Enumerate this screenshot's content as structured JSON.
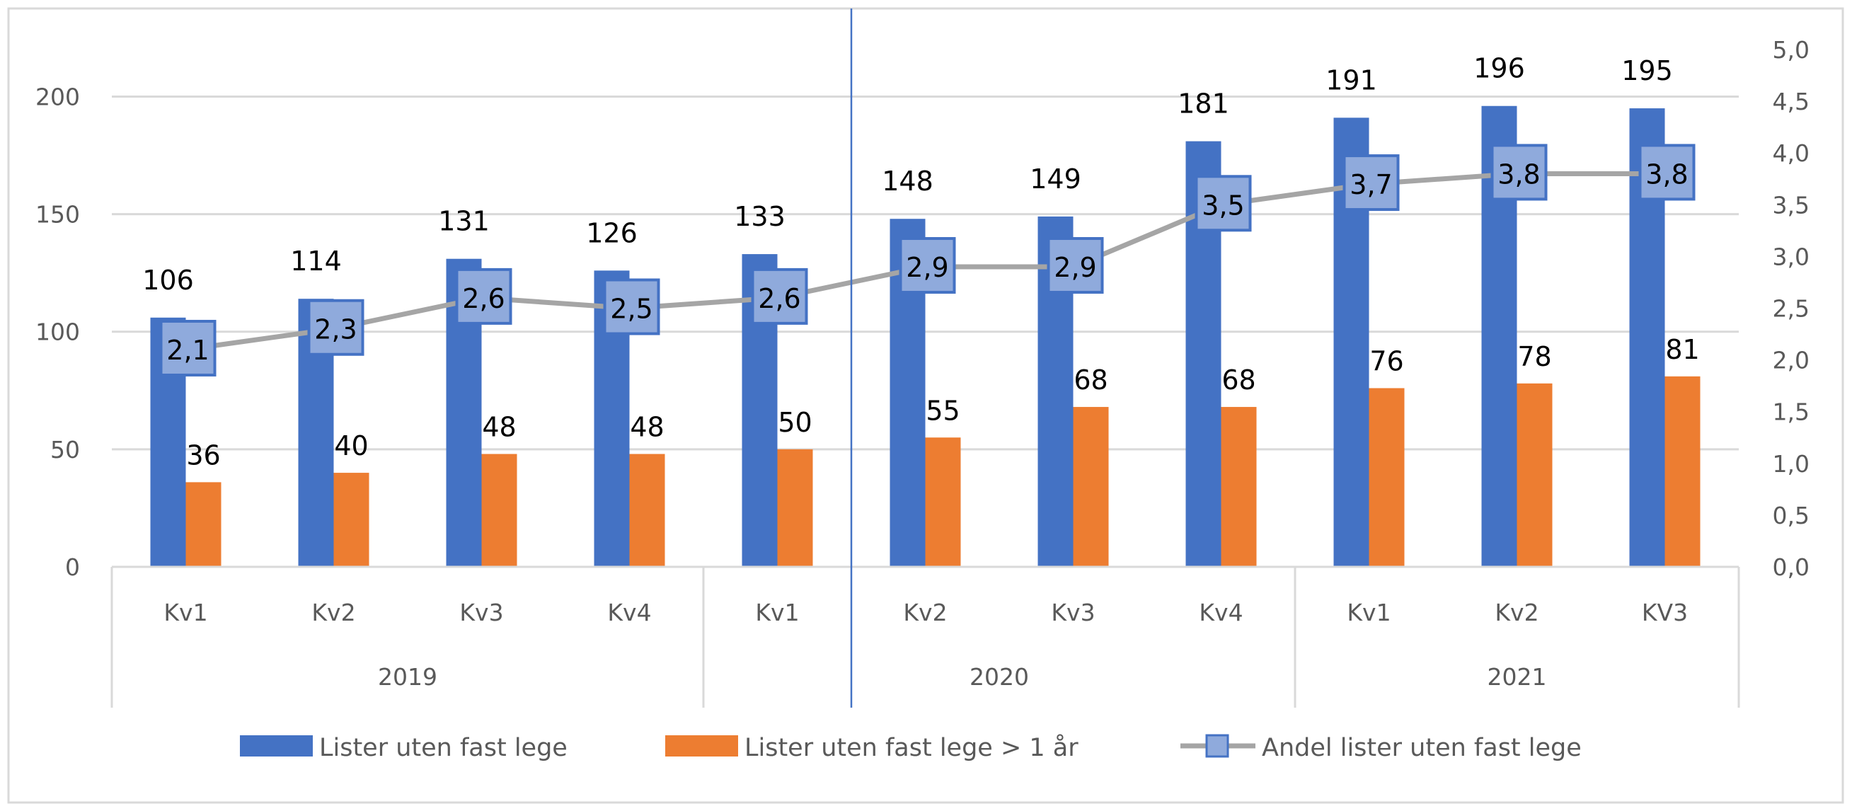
{
  "chart_data": {
    "type": "bar",
    "categories": [
      "Kv1",
      "Kv2",
      "Kv3",
      "Kv4",
      "Kv1",
      "Kv2",
      "Kv3",
      "Kv4",
      "Kv1",
      "Kv2",
      "KV3"
    ],
    "groups": [
      {
        "label": "2019",
        "count": 4
      },
      {
        "label": "2020",
        "count": 4
      },
      {
        "label": "2021",
        "count": 3
      }
    ],
    "series": [
      {
        "name": "Lister uten fast lege",
        "type": "bar",
        "axis": "left",
        "color": "#4472c4",
        "values": [
          106,
          114,
          131,
          126,
          133,
          148,
          149,
          181,
          191,
          196,
          195
        ]
      },
      {
        "name": "Lister uten fast lege > 1 år",
        "type": "bar",
        "axis": "left",
        "color": "#ed7d31",
        "values": [
          36,
          40,
          48,
          48,
          50,
          55,
          68,
          68,
          76,
          78,
          81
        ]
      },
      {
        "name": "Andel lister uten fast lege",
        "type": "line",
        "axis": "right",
        "color": "#a5a5a5",
        "marker_fill": "#8faadc",
        "marker_border": "#4472c4",
        "values": [
          2.1,
          2.3,
          2.6,
          2.5,
          2.6,
          2.9,
          2.9,
          3.5,
          3.7,
          3.8,
          3.8
        ],
        "labels": [
          "2,1",
          "2,3",
          "2,6",
          "2,5",
          "2,6",
          "2,9",
          "2,9",
          "3,5",
          "3,7",
          "3,8",
          "3,8"
        ]
      }
    ],
    "y_left": {
      "ylim": [
        0,
        220
      ],
      "ticks": [
        0,
        50,
        100,
        150,
        200
      ],
      "tick_labels": [
        "0",
        "50",
        "100",
        "150",
        "200"
      ]
    },
    "y_right": {
      "ylim": [
        0,
        5
      ],
      "ticks": [
        0,
        0.5,
        1,
        1.5,
        2,
        2.5,
        3,
        3.5,
        4,
        4.5,
        5
      ],
      "tick_labels": [
        "0,0",
        "0,5",
        "1,0",
        "1,5",
        "2,0",
        "2,5",
        "3,0",
        "3,5",
        "4,0",
        "4,5",
        "5,0"
      ]
    },
    "grid": true,
    "legend": "bottom",
    "vertical_marker_after_category": 5,
    "vertical_marker_color": "#4472c4"
  }
}
